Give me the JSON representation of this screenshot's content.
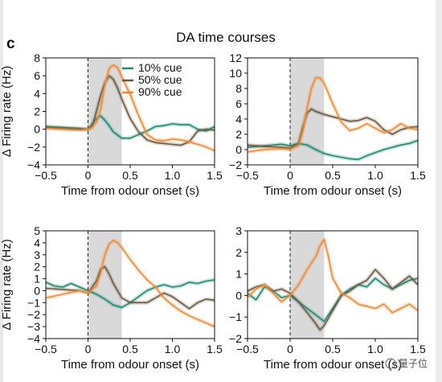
{
  "panel_letter": "c",
  "title": "DA time courses",
  "watermark": "量子位",
  "colors": {
    "cue10": "#1f8a74",
    "cue50": "#6b5a3e",
    "cue90": "#f08a34",
    "shade": "#d9d9d9",
    "axis": "#111111"
  },
  "chart_data": [
    {
      "type": "line",
      "panel": "top-left",
      "xlabel": "Time from odour onset (s)",
      "ylabel": "Δ Firing rate (Hz)",
      "xlim": [
        -0.5,
        1.5
      ],
      "ylim": [
        -4,
        8
      ],
      "xticks": [
        "−0.5",
        "0",
        "0.5",
        "1.0",
        "1.5"
      ],
      "yticks": [
        "−4",
        "−2",
        "0",
        "2",
        "4",
        "6",
        "8"
      ],
      "shaded_interval": [
        0,
        0.4
      ],
      "onset_line": 0,
      "legend": {
        "placement": "top-right",
        "entries": [
          "10% cue",
          "50% cue",
          "90% cue"
        ]
      },
      "series": [
        {
          "name": "10% cue",
          "x": [
            -0.5,
            -0.3,
            -0.1,
            0,
            0.05,
            0.1,
            0.15,
            0.2,
            0.25,
            0.3,
            0.4,
            0.5,
            0.6,
            0.7,
            0.8,
            0.9,
            1.0,
            1.1,
            1.2,
            1.3,
            1.4,
            1.5
          ],
          "y": [
            0.3,
            0.2,
            0.1,
            0.0,
            0.6,
            1.2,
            1.5,
            1.0,
            0.4,
            -0.3,
            -1.0,
            -1.0,
            -0.6,
            -0.2,
            0.3,
            0.4,
            0.6,
            0.5,
            0.5,
            0.0,
            -0.2,
            0.3
          ]
        },
        {
          "name": "50% cue",
          "x": [
            -0.5,
            -0.3,
            -0.1,
            0,
            0.05,
            0.1,
            0.15,
            0.2,
            0.25,
            0.3,
            0.35,
            0.4,
            0.5,
            0.6,
            0.7,
            0.8,
            0.9,
            1.0,
            1.1,
            1.2,
            1.3,
            1.4,
            1.5
          ],
          "y": [
            0.2,
            0.1,
            0.0,
            0.0,
            0.3,
            2.0,
            3.8,
            5.2,
            6.0,
            5.6,
            4.6,
            3.4,
            1.2,
            -0.3,
            -1.2,
            -1.5,
            -1.6,
            -1.7,
            -1.8,
            -1.4,
            -0.2,
            0.0,
            -0.1
          ]
        },
        {
          "name": "90% cue",
          "x": [
            -0.5,
            -0.3,
            -0.1,
            0,
            0.05,
            0.1,
            0.15,
            0.2,
            0.25,
            0.3,
            0.35,
            0.4,
            0.5,
            0.6,
            0.7,
            0.8,
            0.9,
            1.0,
            1.1,
            1.2,
            1.3,
            1.4,
            1.5
          ],
          "y": [
            0.1,
            0.0,
            -0.1,
            0.0,
            0.2,
            0.8,
            2.2,
            5.0,
            6.8,
            7.2,
            6.9,
            5.9,
            3.9,
            1.5,
            -0.6,
            -1.2,
            -1.3,
            -1.1,
            -1.2,
            -1.4,
            -1.7,
            -2.0,
            -2.4
          ]
        }
      ]
    },
    {
      "type": "line",
      "panel": "top-right",
      "xlabel": "Time from odour onset (s)",
      "ylabel": "",
      "xlim": [
        -0.5,
        1.5
      ],
      "ylim": [
        -2,
        12
      ],
      "xticks": [
        "−0.5",
        "0",
        "0.5",
        "1.0",
        "1.5"
      ],
      "yticks": [
        "−2",
        "0",
        "2",
        "4",
        "6",
        "8",
        "10",
        "12"
      ],
      "shaded_interval": [
        0,
        0.4
      ],
      "onset_line": 0,
      "series": [
        {
          "name": "10% cue",
          "x": [
            -0.5,
            -0.3,
            -0.1,
            0,
            0.1,
            0.2,
            0.3,
            0.4,
            0.5,
            0.6,
            0.7,
            0.8,
            0.9,
            1.0,
            1.1,
            1.2,
            1.3,
            1.4,
            1.5
          ],
          "y": [
            0.3,
            0.5,
            0.7,
            0.5,
            0.8,
            0.6,
            0.0,
            -0.5,
            -0.8,
            -1.0,
            -1.2,
            -1.3,
            -0.8,
            -0.4,
            0.0,
            0.3,
            0.6,
            0.8,
            1.2
          ]
        },
        {
          "name": "50% cue",
          "x": [
            -0.5,
            -0.3,
            -0.1,
            0,
            0.1,
            0.15,
            0.2,
            0.25,
            0.3,
            0.4,
            0.5,
            0.6,
            0.7,
            0.8,
            0.9,
            1.0,
            1.1,
            1.2,
            1.3,
            1.4,
            1.5
          ],
          "y": [
            0.6,
            0.4,
            0.3,
            0.2,
            0.8,
            3.0,
            4.8,
            5.3,
            5.0,
            4.6,
            4.3,
            4.0,
            3.7,
            3.8,
            4.2,
            3.7,
            2.6,
            2.0,
            2.6,
            2.9,
            3.0
          ]
        },
        {
          "name": "90% cue",
          "x": [
            -0.5,
            -0.3,
            -0.1,
            0,
            0.1,
            0.15,
            0.2,
            0.25,
            0.3,
            0.35,
            0.4,
            0.5,
            0.6,
            0.7,
            0.8,
            0.9,
            1.0,
            1.1,
            1.2,
            1.3,
            1.4,
            1.5
          ],
          "y": [
            -0.3,
            0.0,
            0.1,
            0.0,
            0.5,
            2.5,
            5.5,
            8.0,
            9.4,
            9.4,
            8.7,
            6.0,
            3.6,
            2.5,
            2.8,
            3.4,
            2.8,
            2.2,
            2.6,
            3.4,
            2.8,
            2.6
          ]
        }
      ]
    },
    {
      "type": "line",
      "panel": "bottom-left",
      "xlabel": "Time from odour onset (s)",
      "ylabel": "Δ Firing rate (Hz)",
      "xlim": [
        -0.5,
        1.5
      ],
      "ylim": [
        -4,
        5
      ],
      "xticks": [
        "−0.5",
        "0",
        "0.5",
        "1.0",
        "1.5"
      ],
      "yticks": [
        "−4",
        "−3",
        "−2",
        "−1",
        "0",
        "1",
        "2",
        "3",
        "4",
        "5"
      ],
      "shaded_interval": [
        0,
        0.4
      ],
      "onset_line": 0,
      "series": [
        {
          "name": "10% cue",
          "x": [
            -0.5,
            -0.4,
            -0.3,
            -0.2,
            -0.1,
            0,
            0.1,
            0.2,
            0.3,
            0.4,
            0.5,
            0.6,
            0.7,
            0.8,
            0.9,
            1.0,
            1.1,
            1.2,
            1.3,
            1.4,
            1.5
          ],
          "y": [
            0.7,
            0.4,
            0.3,
            0.6,
            0.3,
            0.0,
            -0.3,
            -0.7,
            -1.2,
            -1.4,
            -1.0,
            -0.5,
            0.0,
            0.3,
            0.5,
            0.3,
            0.4,
            0.7,
            0.6,
            0.8,
            0.9
          ]
        },
        {
          "name": "50% cue",
          "x": [
            -0.5,
            -0.3,
            -0.1,
            0,
            0.1,
            0.15,
            0.2,
            0.25,
            0.3,
            0.4,
            0.5,
            0.6,
            0.7,
            0.8,
            0.9,
            1.0,
            1.1,
            1.2,
            1.3,
            1.4,
            1.5
          ],
          "y": [
            0.2,
            0.1,
            0.0,
            -0.2,
            0.8,
            1.8,
            2.0,
            1.4,
            0.6,
            -0.6,
            -1.0,
            -1.0,
            -1.0,
            -0.6,
            -0.2,
            -0.5,
            -1.0,
            -1.5,
            -1.0,
            -0.7,
            -0.8
          ]
        },
        {
          "name": "90% cue",
          "x": [
            -0.5,
            -0.3,
            -0.1,
            0,
            0.1,
            0.15,
            0.2,
            0.25,
            0.3,
            0.35,
            0.4,
            0.5,
            0.6,
            0.7,
            0.8,
            0.9,
            1.0,
            1.1,
            1.2,
            1.3,
            1.4,
            1.5
          ],
          "y": [
            -0.6,
            -0.3,
            0.0,
            -0.2,
            0.4,
            1.5,
            3.0,
            3.9,
            4.2,
            4.0,
            3.6,
            2.6,
            1.7,
            0.9,
            0.3,
            -0.6,
            -1.2,
            -1.7,
            -2.1,
            -2.4,
            -2.7,
            -3.0
          ]
        }
      ]
    },
    {
      "type": "line",
      "panel": "bottom-right",
      "xlabel": "Time from odour onset (s)",
      "ylabel": "",
      "xlim": [
        -0.5,
        1.5
      ],
      "ylim": [
        -2,
        3
      ],
      "xticks": [
        "−0.5",
        "0",
        "0.5",
        "1.0",
        "1.5"
      ],
      "yticks": [
        "−2",
        "−1",
        "0",
        "1",
        "2",
        "3"
      ],
      "shaded_interval": [
        0,
        0.4
      ],
      "onset_line": 0,
      "series": [
        {
          "name": "10% cue",
          "x": [
            -0.5,
            -0.4,
            -0.3,
            -0.2,
            -0.1,
            0,
            0.1,
            0.2,
            0.3,
            0.4,
            0.5,
            0.6,
            0.7,
            0.8,
            0.9,
            1.0,
            1.1,
            1.2,
            1.3,
            1.4,
            1.5
          ],
          "y": [
            0.1,
            -0.2,
            0.4,
            0.2,
            -0.1,
            0.0,
            -0.3,
            -0.6,
            -0.9,
            -1.2,
            -0.6,
            0.0,
            0.3,
            0.5,
            0.4,
            0.8,
            0.5,
            0.3,
            0.5,
            0.7,
            0.8
          ]
        },
        {
          "name": "50% cue",
          "x": [
            -0.5,
            -0.4,
            -0.3,
            -0.2,
            -0.1,
            0,
            0.1,
            0.2,
            0.3,
            0.35,
            0.4,
            0.5,
            0.6,
            0.7,
            0.8,
            0.9,
            1.0,
            1.1,
            1.2,
            1.3,
            1.4,
            1.5
          ],
          "y": [
            0.2,
            0.4,
            0.5,
            0.2,
            0.3,
            0.1,
            -0.3,
            -0.8,
            -1.3,
            -1.6,
            -1.4,
            -0.7,
            0.0,
            0.2,
            0.5,
            0.7,
            1.2,
            0.8,
            0.3,
            0.6,
            0.9,
            0.5
          ]
        },
        {
          "name": "90% cue",
          "x": [
            -0.5,
            -0.4,
            -0.3,
            -0.2,
            -0.1,
            0,
            0.1,
            0.2,
            0.3,
            0.35,
            0.4,
            0.45,
            0.5,
            0.6,
            0.7,
            0.8,
            0.9,
            1.0,
            1.1,
            1.2,
            1.3,
            1.4,
            1.5
          ],
          "y": [
            -0.1,
            0.3,
            0.5,
            0.1,
            -0.3,
            0.0,
            0.5,
            1.2,
            1.8,
            2.3,
            2.6,
            1.8,
            0.8,
            0.1,
            -0.1,
            -0.4,
            -0.5,
            -0.6,
            -0.4,
            -0.8,
            -0.6,
            -0.4,
            -0.7
          ]
        }
      ]
    }
  ]
}
